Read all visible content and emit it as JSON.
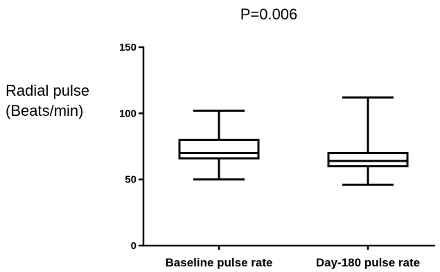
{
  "chart_data": {
    "type": "boxplot",
    "title": "P=0.006",
    "ylabel_lines": [
      "Radial pulse",
      "(Beats/min)"
    ],
    "xlabel": "",
    "ylim": [
      0,
      150
    ],
    "yticks": [
      0,
      50,
      100,
      150
    ],
    "ytick_labels": [
      "0",
      "50",
      "100",
      "150"
    ],
    "categories": [
      "Baseline pulse rate",
      "Day-180 pulse rate"
    ],
    "boxes": [
      {
        "name": "Baseline pulse rate",
        "min": 50,
        "q1": 66,
        "median": 70,
        "q3": 80,
        "max": 102
      },
      {
        "name": "Day-180 pulse rate",
        "min": 46,
        "q1": 60,
        "median": 64,
        "q3": 70,
        "max": 112
      }
    ],
    "grid": false,
    "legend": "none"
  }
}
